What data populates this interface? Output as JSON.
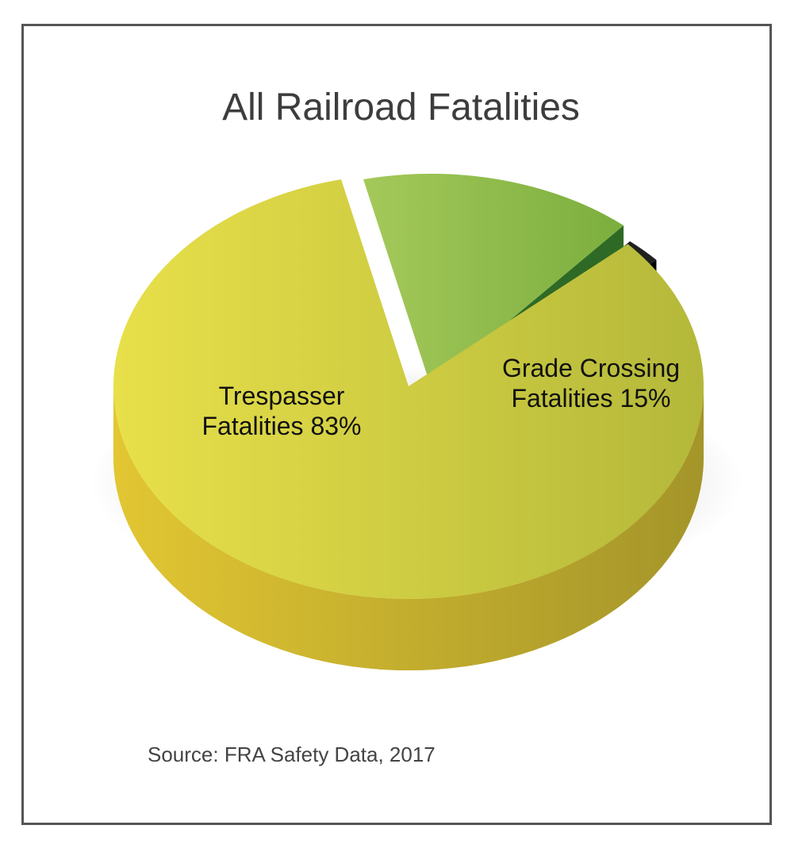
{
  "title": "All Railroad Fatalities",
  "source": "Source: FRA Safety Data, 2017",
  "colors": {
    "trespasser_top_light": "#e8e04a",
    "trespasser_top_dark": "#b4b83a",
    "trespasser_side_light": "#e2c632",
    "trespasser_side_dark": "#a4952a",
    "grade_top": "#8fbf4c",
    "grade_side": "#2e6a26",
    "other_top": "#202020",
    "other_side": "#8c8c8c",
    "frame": "#555555"
  },
  "chart_data": {
    "type": "pie",
    "title": "All Railroad Fatalities",
    "slices": [
      {
        "name": "Trespasser Fatalities",
        "value": 83,
        "label_lines": [
          "Trespasser",
          "Fatalities 83%"
        ]
      },
      {
        "name": "Grade Crossing Fatalities",
        "value": 15,
        "label_lines": [
          "Grade Crossing",
          "Fatalities 15%"
        ]
      },
      {
        "name": "",
        "value": 2,
        "label_lines": []
      }
    ],
    "exploded": [
      1,
      2
    ],
    "legend": "none",
    "three_d": true
  }
}
